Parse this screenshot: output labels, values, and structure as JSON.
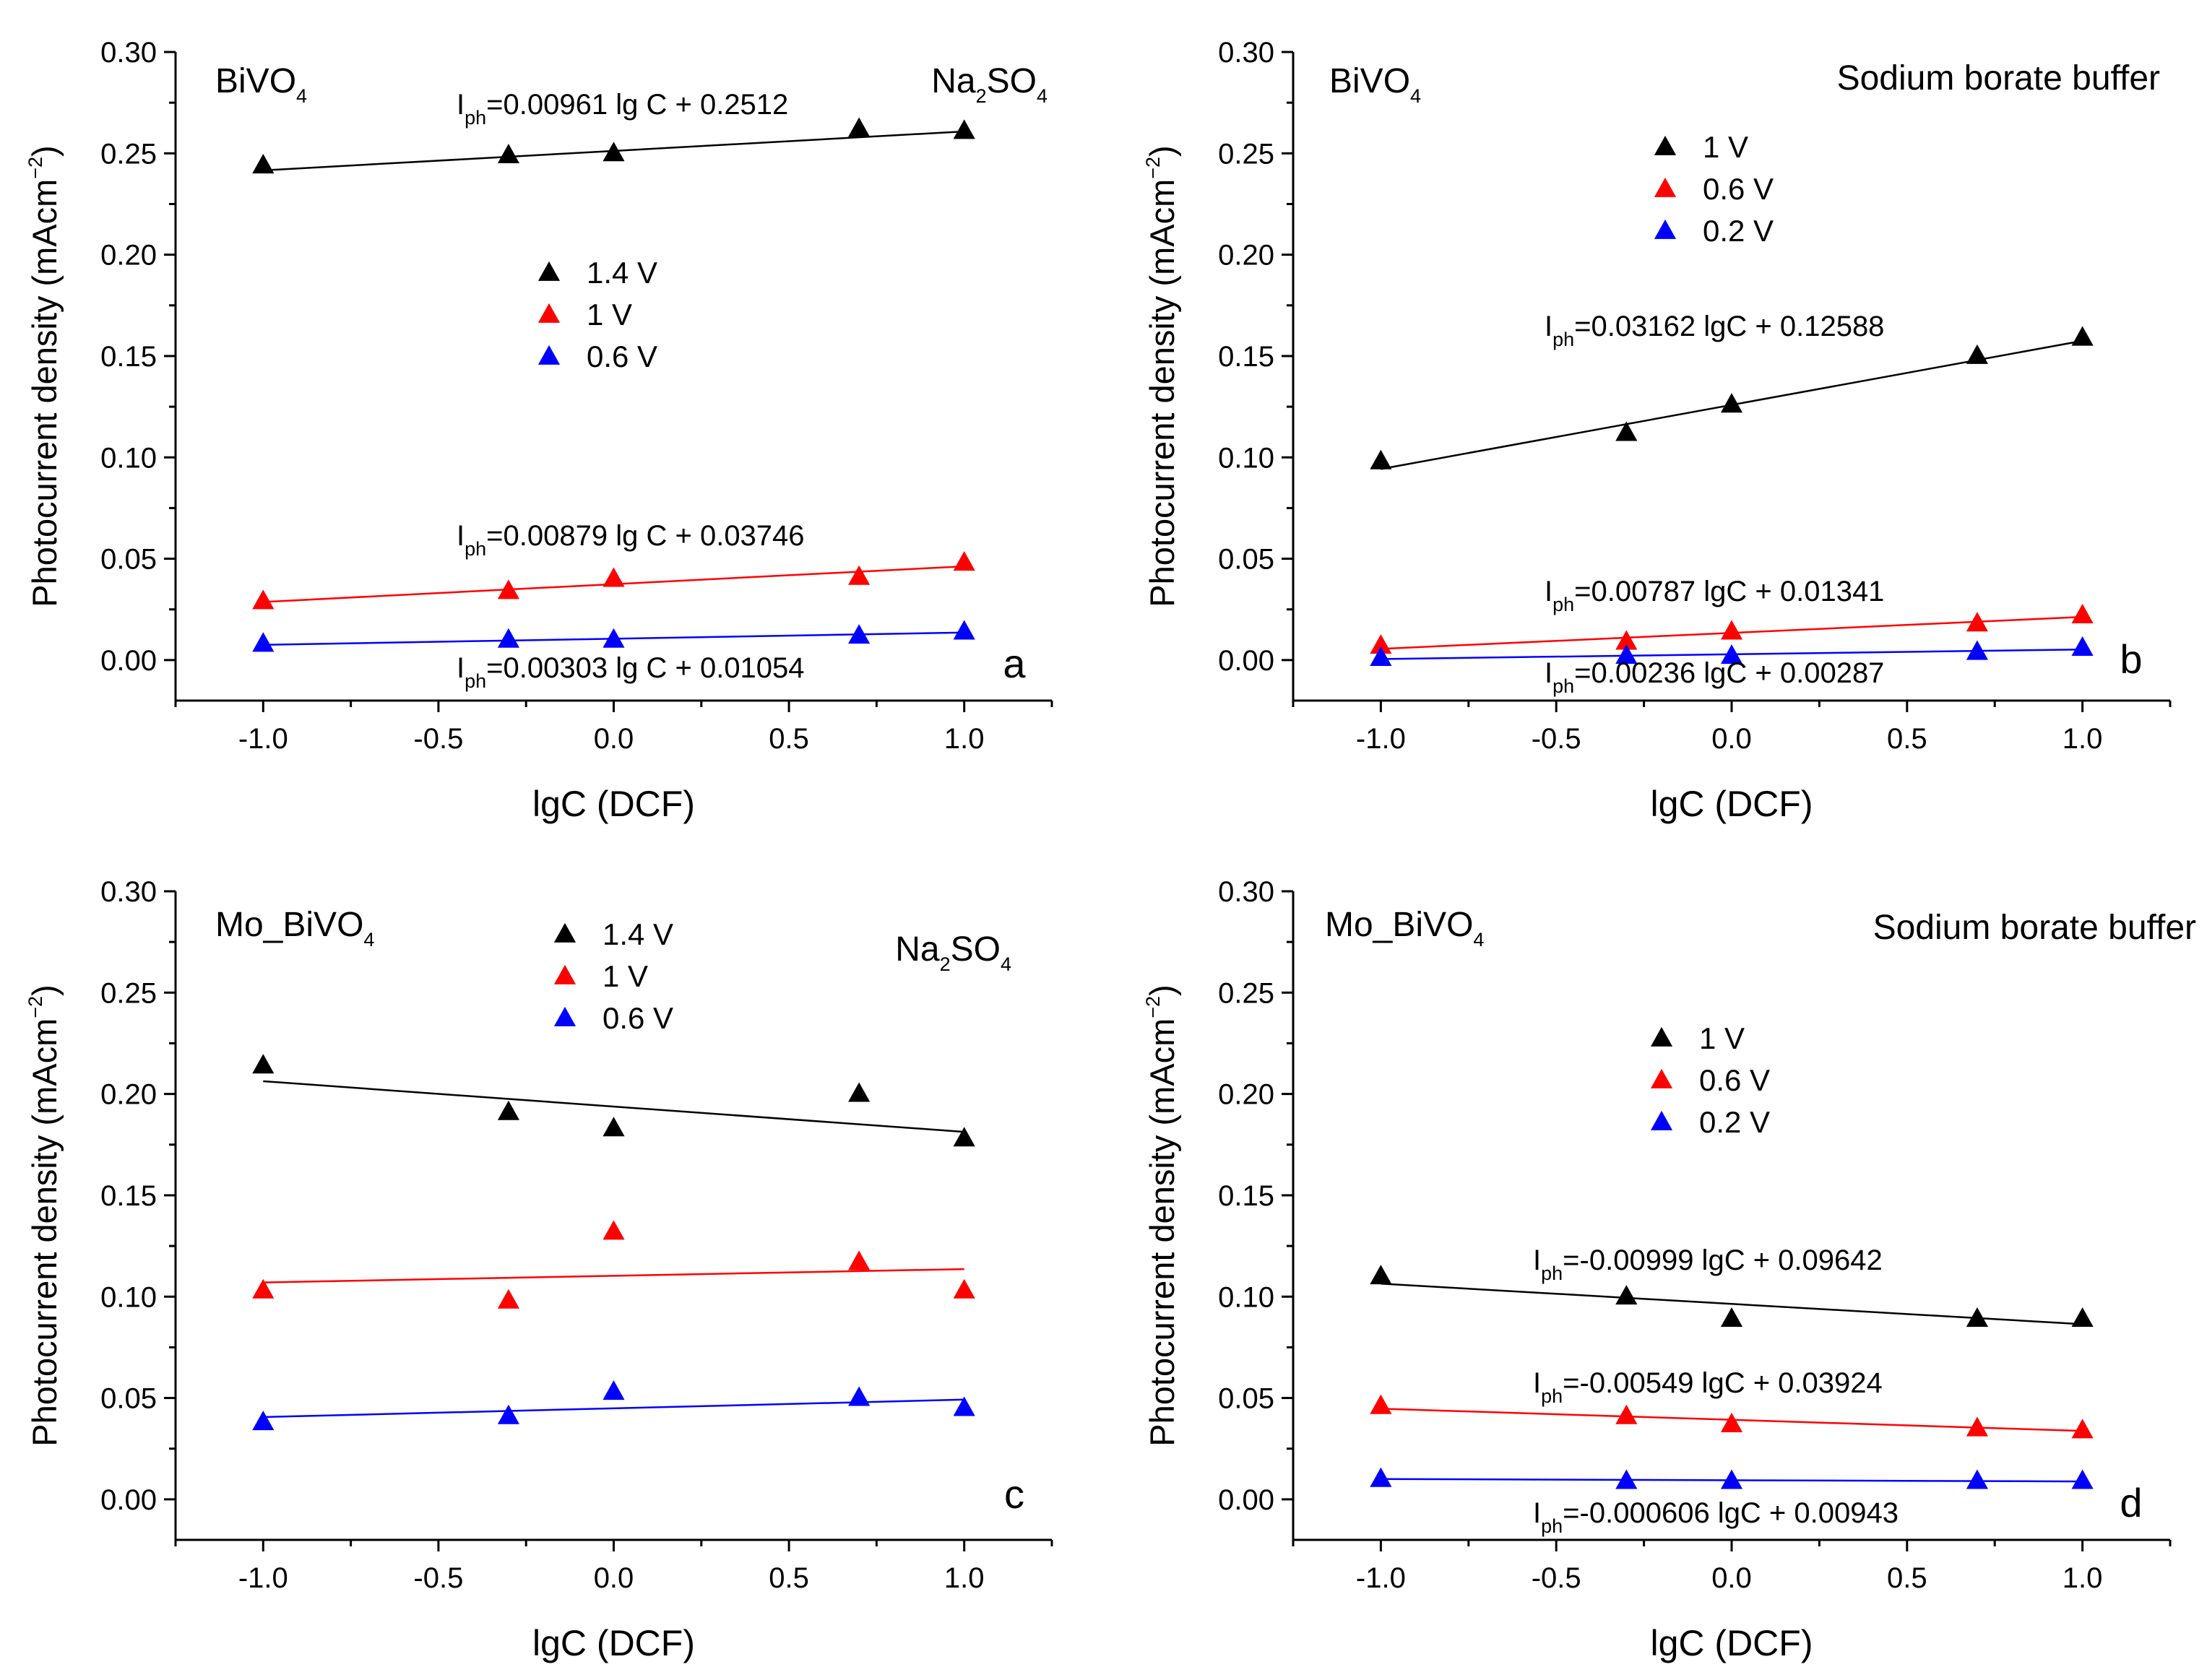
{
  "chart_data": [
    {
      "type": "scatter",
      "panel": "a",
      "xlabel": "lgC (DCF)",
      "ylabel": "Photocurrent density (mAcm",
      "ylabel_sup": "−2",
      "ylabel_close": ")",
      "xlim": [
        -1.25,
        1.25
      ],
      "ylim": [
        -0.02,
        0.3
      ],
      "xticks": [
        -1.0,
        -0.5,
        0.0,
        0.5,
        1.0
      ],
      "xtick_labels": [
        "-1.0",
        "-0.5",
        "0.0",
        "0.5",
        "1.0"
      ],
      "yticks": [
        0.0,
        0.05,
        0.1,
        0.15,
        0.2,
        0.25,
        0.3
      ],
      "ytick_labels": [
        "0.00",
        "0.05",
        "0.10",
        "0.15",
        "0.20",
        "0.25",
        "0.30"
      ],
      "material": {
        "main": "BiVO",
        "sub": "4",
        "rest": ""
      },
      "electrolyte": {
        "main": "Na",
        "sub": "2",
        "rest": "SO",
        "sub2": "4"
      },
      "legend_placement": "center-left",
      "x": [
        -1.0,
        -0.3,
        0.0,
        0.7,
        1.0
      ],
      "series": [
        {
          "name": "1.4 V",
          "color": "#000000",
          "values": [
            0.244,
            0.249,
            0.25,
            0.262,
            0.261
          ],
          "fit": {
            "slope": 0.00961,
            "intercept": 0.2512
          }
        },
        {
          "name": "1 V",
          "color": "#ff0000",
          "values": [
            0.029,
            0.034,
            0.04,
            0.041,
            0.048
          ],
          "fit": {
            "slope": 0.00879,
            "intercept": 0.03746
          }
        },
        {
          "name": "0.6 V",
          "color": "#0000ff",
          "values": [
            0.008,
            0.01,
            0.01,
            0.012,
            0.014
          ],
          "fit": {
            "slope": 0.00303,
            "intercept": 0.01054
          }
        }
      ],
      "equations": [
        {
          "text": "=0.00961 lg C + 0.2512",
          "series": "1.4 V"
        },
        {
          "text": "=0.00879 lg C + 0.03746",
          "series": "1 V"
        },
        {
          "text": "=0.00303 lg C + 0.01054",
          "series": "0.6 V"
        }
      ]
    },
    {
      "type": "scatter",
      "panel": "b",
      "xlabel": "lgC (DCF)",
      "ylabel": "Photocurrent density (mAcm",
      "ylabel_sup": "−2",
      "ylabel_close": ")",
      "xlim": [
        -1.25,
        1.25
      ],
      "ylim": [
        -0.02,
        0.3
      ],
      "xticks": [
        -1.0,
        -0.5,
        0.0,
        0.5,
        1.0
      ],
      "xtick_labels": [
        "-1.0",
        "-0.5",
        "0.0",
        "0.5",
        "1.0"
      ],
      "yticks": [
        0.0,
        0.05,
        0.1,
        0.15,
        0.2,
        0.25,
        0.3
      ],
      "ytick_labels": [
        "0.00",
        "0.05",
        "0.10",
        "0.15",
        "0.20",
        "0.25",
        "0.30"
      ],
      "material": {
        "main": "BiVO",
        "sub": "4",
        "rest": ""
      },
      "electrolyte": {
        "main": "Sodium borate buffer"
      },
      "legend_placement": "top-center",
      "x": [
        -1.0,
        -0.3,
        0.0,
        0.7,
        1.0
      ],
      "series": [
        {
          "name": "1 V",
          "color": "#000000",
          "values": [
            0.098,
            0.112,
            0.126,
            0.15,
            0.159
          ],
          "fit": {
            "slope": 0.03162,
            "intercept": 0.12588
          }
        },
        {
          "name": "0.6 V",
          "color": "#ff0000",
          "values": [
            0.007,
            0.009,
            0.014,
            0.018,
            0.022
          ],
          "fit": {
            "slope": 0.00787,
            "intercept": 0.01341
          }
        },
        {
          "name": "0.2 V",
          "color": "#0000ff",
          "values": [
            0.001,
            0.002,
            0.002,
            0.004,
            0.006
          ],
          "fit": {
            "slope": 0.00236,
            "intercept": 0.00287
          }
        }
      ],
      "equations": [
        {
          "text": "=0.03162 lgC + 0.12588",
          "series": "1 V"
        },
        {
          "text": "=0.00787 lgC + 0.01341",
          "series": "0.6 V"
        },
        {
          "text": "=0.00236 lgC + 0.00287",
          "series": "0.2 V"
        }
      ]
    },
    {
      "type": "scatter",
      "panel": "c",
      "xlabel": "lgC (DCF)",
      "ylabel": "Photocurrent density (mAcm",
      "ylabel_sup": "−2",
      "ylabel_close": ")",
      "xlim": [
        -1.25,
        1.25
      ],
      "ylim": [
        -0.02,
        0.3
      ],
      "xticks": [
        -1.0,
        -0.5,
        0.0,
        0.5,
        1.0
      ],
      "xtick_labels": [
        "-1.0",
        "-0.5",
        "0.0",
        "0.5",
        "1.0"
      ],
      "yticks": [
        0.0,
        0.05,
        0.1,
        0.15,
        0.2,
        0.25,
        0.3
      ],
      "ytick_labels": [
        "0.00",
        "0.05",
        "0.10",
        "0.15",
        "0.20",
        "0.25",
        "0.30"
      ],
      "material": {
        "main": "Mo_BiVO",
        "sub": "4",
        "rest": ""
      },
      "electrolyte": {
        "main": "Na",
        "sub": "2",
        "rest": "SO",
        "sub2": "4"
      },
      "legend_placement": "top-center",
      "x": [
        -1.0,
        -0.3,
        0.0,
        0.7,
        1.0
      ],
      "series": [
        {
          "name": "1.4 V",
          "color": "#000000",
          "values": [
            0.214,
            0.191,
            0.183,
            0.2,
            0.178
          ],
          "fit": {
            "slope": -0.0125,
            "intercept": 0.1938
          }
        },
        {
          "name": "1 V",
          "color": "#ff0000",
          "values": [
            0.103,
            0.098,
            0.132,
            0.117,
            0.103
          ],
          "fit": {
            "slope": 0.0033,
            "intercept": 0.1103
          }
        },
        {
          "name": "0.6 V",
          "color": "#0000ff",
          "values": [
            0.038,
            0.041,
            0.053,
            0.05,
            0.045
          ],
          "fit": {
            "slope": 0.0043,
            "intercept": 0.0449
          }
        }
      ],
      "equations": []
    },
    {
      "type": "scatter",
      "panel": "d",
      "xlabel": "lgC (DCF)",
      "ylabel": "Photocurrent density (mAcm",
      "ylabel_sup": "−2",
      "ylabel_close": ")",
      "xlim": [
        -1.25,
        1.25
      ],
      "ylim": [
        -0.02,
        0.3
      ],
      "xticks": [
        -1.0,
        -0.5,
        0.0,
        0.5,
        1.0
      ],
      "xtick_labels": [
        "-1.0",
        "-0.5",
        "0.0",
        "0.5",
        "1.0"
      ],
      "yticks": [
        0.0,
        0.05,
        0.1,
        0.15,
        0.2,
        0.25,
        0.3
      ],
      "ytick_labels": [
        "0.00",
        "0.05",
        "0.10",
        "0.15",
        "0.20",
        "0.25",
        "0.30"
      ],
      "material": {
        "main": "Mo_BiVO",
        "sub": "4",
        "rest": ""
      },
      "electrolyte": {
        "main": "Sodium borate buffer"
      },
      "legend_placement": "top-center",
      "x": [
        -1.0,
        -0.3,
        0.0,
        0.7,
        1.0
      ],
      "series": [
        {
          "name": "1 V",
          "color": "#000000",
          "values": [
            0.11,
            0.1,
            0.089,
            0.089,
            0.089
          ],
          "fit": {
            "slope": -0.00999,
            "intercept": 0.09642
          }
        },
        {
          "name": "0.6 V",
          "color": "#ff0000",
          "values": [
            0.046,
            0.041,
            0.037,
            0.035,
            0.034
          ],
          "fit": {
            "slope": -0.00549,
            "intercept": 0.03924
          }
        },
        {
          "name": "0.2 V",
          "color": "#0000ff",
          "values": [
            0.01,
            0.009,
            0.009,
            0.009,
            0.009
          ],
          "fit": {
            "slope": -0.000606,
            "intercept": 0.00943
          }
        }
      ],
      "equations": [
        {
          "text": "=-0.00999 lgC + 0.09642",
          "series": "1 V"
        },
        {
          "text": "=-0.00549 lgC + 0.03924",
          "series": "0.6 V"
        },
        {
          "text": "=-0.000606 lgC + 0.00943",
          "series": "0.2 V"
        }
      ]
    }
  ],
  "equation_prefix": {
    "main": "I",
    "sub": "ph"
  }
}
